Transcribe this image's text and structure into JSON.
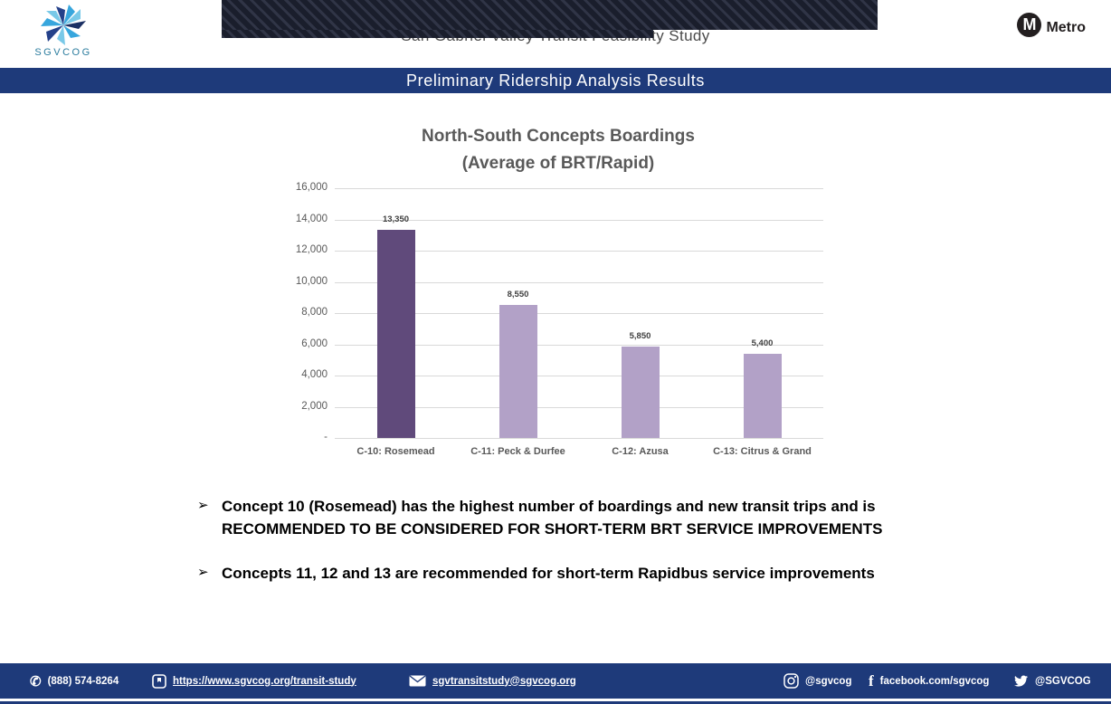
{
  "header": {
    "study_title": "San Gabriel Valley Transit Feasibility Study",
    "banner_title": "Preliminary Ridership Analysis Results",
    "sgvcog_label": "SGVCOG",
    "metro_m": "M",
    "metro_label": "Metro"
  },
  "chart_data": {
    "type": "bar",
    "title": "North-South Concepts Boardings",
    "subtitle": "(Average of BRT/Rapid)",
    "categories": [
      "C-10: Rosemead",
      "C-11: Peck & Durfee",
      "C-12: Azusa",
      "C-13: Citrus & Grand"
    ],
    "values": [
      13350,
      8550,
      5850,
      5400
    ],
    "value_labels": [
      "13,350",
      "8,550",
      "5,850",
      "5,400"
    ],
    "bar_colors": [
      "#604a7b",
      "#b2a1c7",
      "#b2a1c7",
      "#b2a1c7"
    ],
    "ylim": [
      0,
      16000
    ],
    "ytick_interval": 2000,
    "ytick_labels": [
      "16,000",
      "14,000",
      "12,000",
      "10,000",
      "8,000",
      "6,000",
      "4,000",
      "2,000",
      "-"
    ],
    "grid": true,
    "legend": false,
    "xlabel": "",
    "ylabel": ""
  },
  "bullets": {
    "0": {
      "line1": "Concept 10 (Rosemead) has the highest number of boardings and new transit trips and is",
      "line2": "RECOMMENDED TO BE CONSIDERED FOR SHORT-TERM BRT SERVICE IMPROVEMENTS"
    },
    "1": {
      "line1": "Concepts 11, 12 and 13 are recommended for short-term Rapidbus service improvements"
    }
  },
  "footer": {
    "phone": "(888) 574-8264",
    "website": "https://www.sgvcog.org/transit-study",
    "email": "sgvtransitstudy@sgvcog.org",
    "instagram": "@sgvcog",
    "facebook": "facebook.com/sgvcog",
    "twitter": "@SGVCOG"
  },
  "colors": {
    "navy": "#1e3a7a",
    "bar_dark_purple": "#604a7b",
    "bar_light_purple": "#b2a1c7",
    "chart_text": "#595959"
  }
}
